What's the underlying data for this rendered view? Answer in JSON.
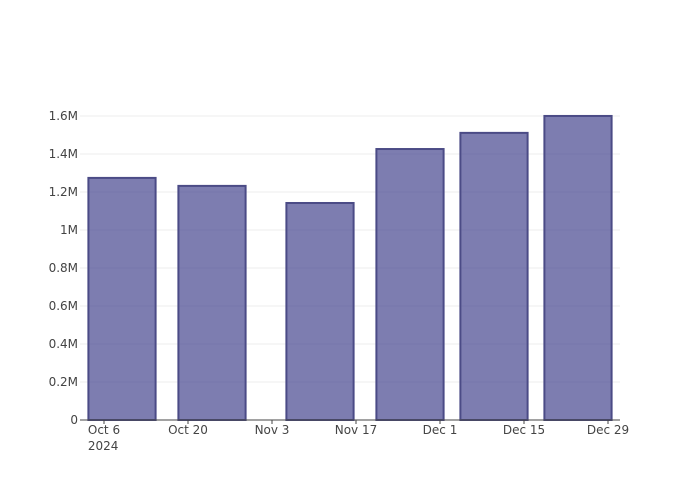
{
  "chart_data": {
    "type": "bar",
    "x": [
      "2024-10-09",
      "2024-10-24",
      "2024-11-11",
      "2024-11-26",
      "2024-12-10",
      "2024-12-24"
    ],
    "values": [
      1274000,
      1232000,
      1142000,
      1426000,
      1511000,
      1600000
    ],
    "color": "rgba(64, 64, 138, 0.68)",
    "border_color": "#4b4b86",
    "xlim": [
      "2024-10-02",
      "2024-12-31"
    ],
    "xticks": [
      {
        "value": "2024-10-06",
        "label": "Oct 6",
        "sublabel": "2024"
      },
      {
        "value": "2024-10-20",
        "label": "Oct 20"
      },
      {
        "value": "2024-11-03",
        "label": "Nov 3"
      },
      {
        "value": "2024-11-17",
        "label": "Nov 17"
      },
      {
        "value": "2024-12-01",
        "label": "Dec 1"
      },
      {
        "value": "2024-12-15",
        "label": "Dec 15"
      },
      {
        "value": "2024-12-29",
        "label": "Dec 29"
      }
    ],
    "ylim": [
      0,
      1684000
    ],
    "yticks": [
      0,
      {
        "value": 200000,
        "label": "0.2M"
      },
      {
        "value": 400000,
        "label": "0.4M"
      },
      {
        "value": 600000,
        "label": "0.6M"
      },
      {
        "value": 800000,
        "label": "0.8M"
      },
      {
        "value": 1000000,
        "label": "1M"
      },
      {
        "value": 1200000,
        "label": "1.2M"
      },
      {
        "value": 1400000,
        "label": "1.4M"
      },
      {
        "value": 1600000,
        "label": "1.6M"
      }
    ],
    "grid": true
  }
}
